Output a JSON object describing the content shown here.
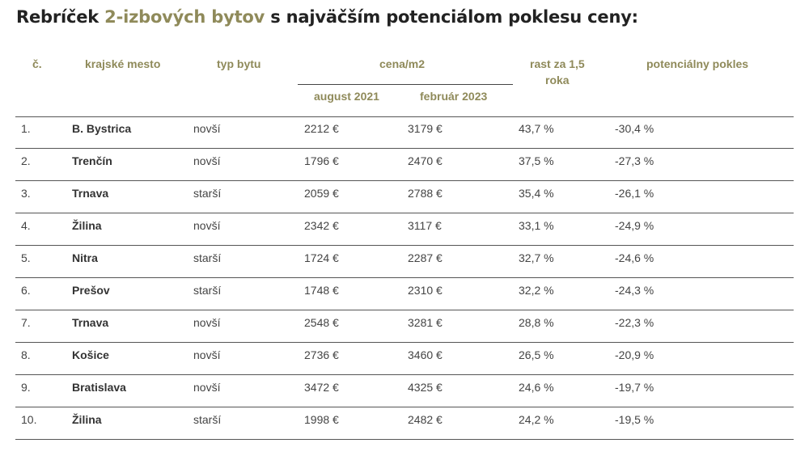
{
  "title": {
    "prefix": "Rebríček ",
    "accent": "2-izbových bytov",
    "suffix": " s najväčším potenciálom poklesu ceny:"
  },
  "colors": {
    "accent": "#8f8a5a",
    "text": "#444444",
    "title": "#222222"
  },
  "table": {
    "headers": {
      "rank": "č.",
      "city": "krajské mesto",
      "type": "typ bytu",
      "price": "cena/m2",
      "aug2021": "august 2021",
      "feb2023": "február 2023",
      "growth_line1": "rast za 1,5",
      "growth_line2": "roka",
      "drop": "potenciálny pokles"
    },
    "rows": [
      {
        "rank": "1.",
        "city": "B. Bystrica",
        "type": "novší",
        "aug2021": "2212 €",
        "feb2023": "3179 €",
        "growth": "43,7 %",
        "drop": "-30,4 %"
      },
      {
        "rank": "2.",
        "city": "Trenčín",
        "type": "novší",
        "aug2021": "1796 €",
        "feb2023": "2470 €",
        "growth": "37,5 %",
        "drop": "-27,3 %"
      },
      {
        "rank": "3.",
        "city": "Trnava",
        "type": "starší",
        "aug2021": "2059 €",
        "feb2023": "2788 €",
        "growth": "35,4 %",
        "drop": "-26,1 %"
      },
      {
        "rank": "4.",
        "city": "Žilina",
        "type": "novší",
        "aug2021": "2342 €",
        "feb2023": "3117 €",
        "growth": "33,1 %",
        "drop": "-24,9 %"
      },
      {
        "rank": "5.",
        "city": "Nitra",
        "type": "starší",
        "aug2021": "1724 €",
        "feb2023": "2287 €",
        "growth": "32,7 %",
        "drop": "-24,6 %"
      },
      {
        "rank": "6.",
        "city": "Prešov",
        "type": "starší",
        "aug2021": "1748 €",
        "feb2023": "2310 €",
        "growth": "32,2 %",
        "drop": "-24,3 %"
      },
      {
        "rank": "7.",
        "city": "Trnava",
        "type": "novší",
        "aug2021": "2548 €",
        "feb2023": "3281 €",
        "growth": "28,8 %",
        "drop": "-22,3 %"
      },
      {
        "rank": "8.",
        "city": "Košice",
        "type": "novší",
        "aug2021": "2736 €",
        "feb2023": "3460 €",
        "growth": "26,5 %",
        "drop": "-20,9 %"
      },
      {
        "rank": "9.",
        "city": "Bratislava",
        "type": "novší",
        "aug2021": "3472 €",
        "feb2023": "4325 €",
        "growth": "24,6 %",
        "drop": "-19,7 %"
      },
      {
        "rank": "10.",
        "city": "Žilina",
        "type": "starší",
        "aug2021": "1998 €",
        "feb2023": "2482 €",
        "growth": "24,2 %",
        "drop": "-19,5 %"
      }
    ]
  }
}
